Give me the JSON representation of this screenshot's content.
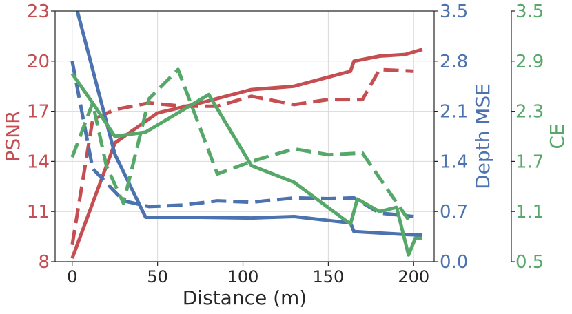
{
  "chart_data": {
    "type": "line",
    "xlabel": "Distance (m)",
    "x_ticks": [
      0,
      50,
      100,
      150,
      200
    ],
    "xlim": [
      -10,
      212
    ],
    "grid": true,
    "colors": {
      "psnr": "#c44e52",
      "depth": "#4c72b0",
      "ce": "#55a868",
      "text": "#262626"
    },
    "axes": {
      "psnr": {
        "label": "PSNR",
        "side": "left",
        "ylim": [
          8,
          23
        ],
        "ticks": [
          8,
          11,
          14,
          17,
          20,
          23
        ],
        "tick_labels": [
          "8",
          "11",
          "14",
          "17",
          "20",
          "23"
        ]
      },
      "depth": {
        "label": "Depth MSE",
        "side": "right",
        "ylim": [
          0.0,
          3.5
        ],
        "ticks": [
          0.0,
          0.7,
          1.4,
          2.1,
          2.8,
          3.5
        ],
        "tick_labels": [
          "0.0",
          "0.7",
          "1.4",
          "2.1",
          "2.8",
          "3.5"
        ]
      },
      "ce": {
        "label": "CE",
        "side": "right-outer",
        "ylim": [
          0.5,
          3.5
        ],
        "ticks": [
          0.5,
          1.1,
          1.7,
          2.3,
          2.9,
          3.5
        ],
        "tick_labels": [
          "0.5",
          "1.1",
          "1.7",
          "2.3",
          "2.9",
          "3.5"
        ]
      }
    },
    "series": [
      {
        "axis": "psnr",
        "style": "solid",
        "x": [
          0,
          25,
          50,
          75,
          105,
          130,
          163,
          165,
          180,
          195,
          205
        ],
        "y": [
          8.2,
          15.1,
          16.9,
          17.5,
          18.3,
          18.5,
          19.4,
          20.0,
          20.3,
          20.4,
          20.7
        ]
      },
      {
        "axis": "psnr",
        "style": "dashed",
        "x": [
          0,
          12,
          25,
          45,
          65,
          85,
          105,
          130,
          150,
          170,
          180,
          200
        ],
        "y": [
          9.0,
          16.5,
          17.1,
          17.5,
          17.3,
          17.3,
          17.9,
          17.4,
          17.7,
          17.7,
          19.5,
          19.4
        ]
      },
      {
        "axis": "depth",
        "style": "solid",
        "x": [
          3,
          25,
          43,
          75,
          105,
          130,
          163,
          165,
          195,
          205
        ],
        "y": [
          3.5,
          1.5,
          0.62,
          0.62,
          0.61,
          0.63,
          0.54,
          0.42,
          0.38,
          0.37
        ]
      },
      {
        "axis": "depth",
        "style": "dashed",
        "x": [
          0,
          12,
          30,
          45,
          65,
          85,
          105,
          130,
          150,
          165,
          180,
          200
        ],
        "y": [
          2.8,
          1.3,
          0.85,
          0.77,
          0.79,
          0.85,
          0.83,
          0.89,
          0.88,
          0.89,
          0.68,
          0.63
        ]
      },
      {
        "axis": "ce",
        "style": "solid",
        "x": [
          0,
          12,
          25,
          43,
          80,
          105,
          130,
          163,
          167,
          180,
          190,
          197,
          201,
          205
        ],
        "y": [
          2.75,
          2.4,
          2.0,
          2.05,
          2.5,
          1.65,
          1.45,
          0.95,
          1.25,
          1.1,
          1.15,
          0.58,
          0.78,
          0.78
        ]
      },
      {
        "axis": "ce",
        "style": "dashed",
        "x": [
          0,
          12,
          20,
          30,
          45,
          62,
          85,
          105,
          130,
          150,
          170,
          197
        ],
        "y": [
          1.75,
          2.4,
          1.65,
          1.2,
          2.45,
          2.8,
          1.55,
          1.7,
          1.85,
          1.78,
          1.8,
          1.0
        ]
      }
    ]
  }
}
